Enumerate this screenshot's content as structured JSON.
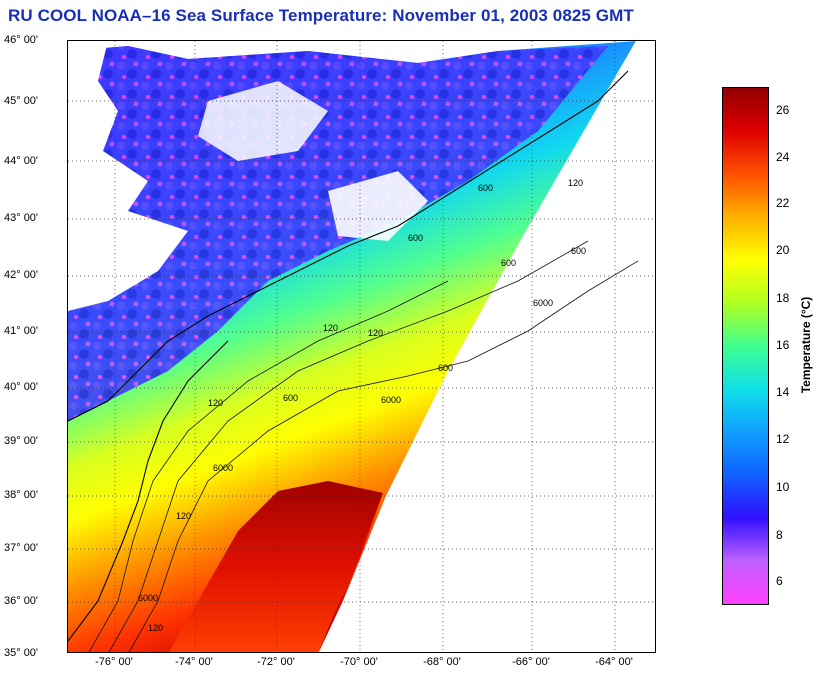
{
  "title": "RU COOL  NOAA–16  Sea Surface Temperature:  November 01, 2003 0825 GMT",
  "map": {
    "lat_labels": [
      "46° 00'",
      "45° 00'",
      "44° 00'",
      "43° 00'",
      "42° 00'",
      "41° 00'",
      "40° 00'",
      "39° 00'",
      "38° 00'",
      "37° 00'",
      "36° 00'",
      "35° 00'"
    ],
    "lon_labels": [
      "-76° 00'",
      "-74° 00'",
      "-72° 00'",
      "-70° 00'",
      "-68° 00'",
      "-66° 00'",
      "-64° 00'"
    ],
    "contour_labels": [
      "600",
      "600",
      "600",
      "600",
      "600",
      "600",
      "6000",
      "6000",
      "6000",
      "6000",
      "120",
      "120",
      "120",
      "120",
      "120",
      "120"
    ]
  },
  "colorbar": {
    "label": "Temperature (°C)",
    "ticks": [
      "26",
      "24",
      "22",
      "20",
      "18",
      "16",
      "14",
      "12",
      "10",
      "8",
      "6"
    ],
    "colors": [
      "#ff40ff",
      "#c060ff",
      "#3010ff",
      "#1060ff",
      "#10a0ff",
      "#10e0e8",
      "#40ff90",
      "#b0ff20",
      "#ffff00",
      "#ffb000",
      "#ff5000",
      "#e00000",
      "#900000"
    ]
  }
}
